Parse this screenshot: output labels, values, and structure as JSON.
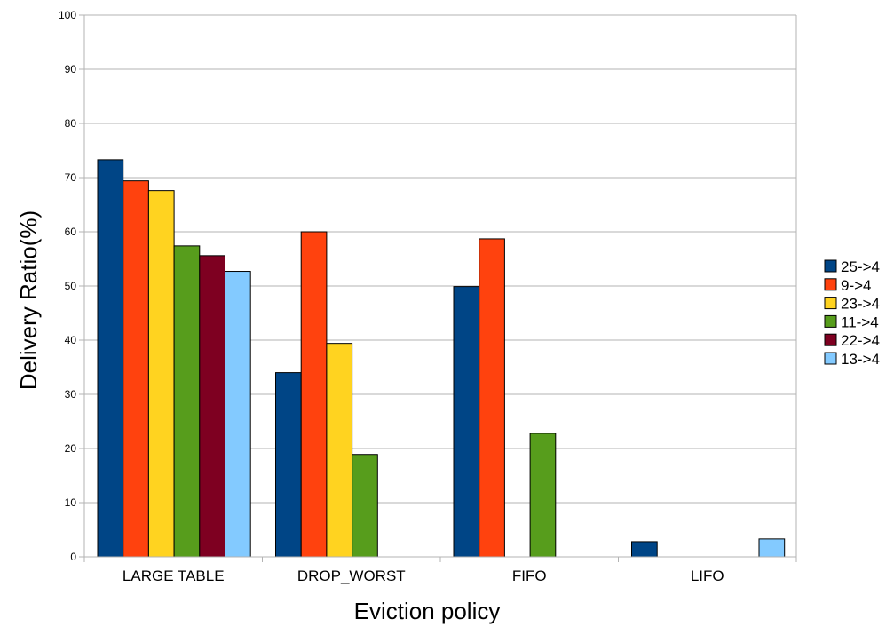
{
  "chart_data": {
    "type": "bar",
    "title": "",
    "xlabel": "Eviction policy",
    "ylabel": "Delivery Ratio(%)",
    "ylim": [
      0,
      100
    ],
    "yticks": [
      0,
      10,
      20,
      30,
      40,
      50,
      60,
      70,
      80,
      90,
      100
    ],
    "grid": true,
    "legend_position": "right",
    "categories": [
      "LARGE TABLE",
      "DROP_WORST",
      "FIFO",
      "LIFO"
    ],
    "series": [
      {
        "name": "25->4",
        "color": "#004586",
        "values": [
          73.3,
          34.0,
          49.9,
          2.8
        ]
      },
      {
        "name": "9->4",
        "color": "#ff420e",
        "values": [
          69.4,
          60.0,
          58.7,
          0
        ]
      },
      {
        "name": "23->4",
        "color": "#ffd320",
        "values": [
          67.6,
          39.4,
          0,
          0
        ]
      },
      {
        "name": "11->4",
        "color": "#579d1c",
        "values": [
          57.4,
          18.9,
          22.8,
          0
        ]
      },
      {
        "name": "22->4",
        "color": "#7e0021",
        "values": [
          55.6,
          0,
          0,
          0
        ]
      },
      {
        "name": "13->4",
        "color": "#83caff",
        "values": [
          52.7,
          0,
          0,
          3.3
        ]
      }
    ]
  }
}
